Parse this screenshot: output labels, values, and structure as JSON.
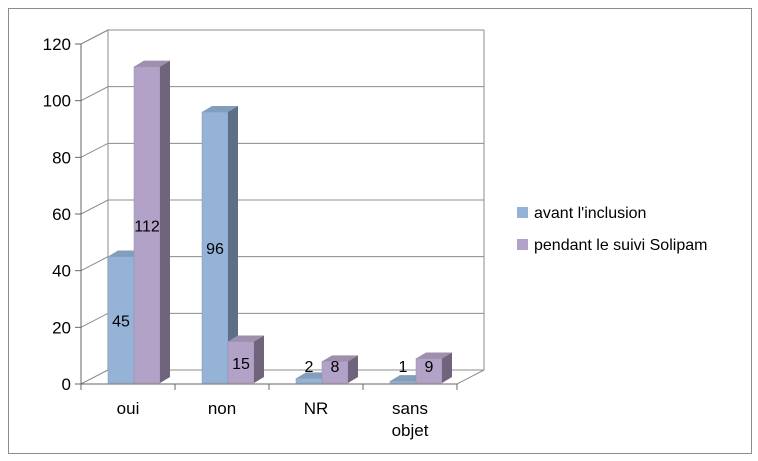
{
  "chart_data": {
    "type": "bar",
    "three_d": true,
    "categories": [
      "oui",
      "non",
      "NR",
      "sans objet"
    ],
    "series": [
      {
        "name": "avant l'inclusion",
        "values": [
          45,
          96,
          2,
          1
        ],
        "color": "#95b3d7"
      },
      {
        "name": "pendant le suivi Solipam",
        "values": [
          112,
          15,
          8,
          9
        ],
        "color": "#b3a2c7"
      }
    ],
    "ylim": [
      0,
      120
    ],
    "yticks": [
      "0",
      "20",
      "40",
      "60",
      "80",
      "100",
      "120"
    ],
    "grid": true,
    "legend": "right",
    "data_labels": true,
    "title": "",
    "xlabel": "",
    "ylabel": ""
  }
}
